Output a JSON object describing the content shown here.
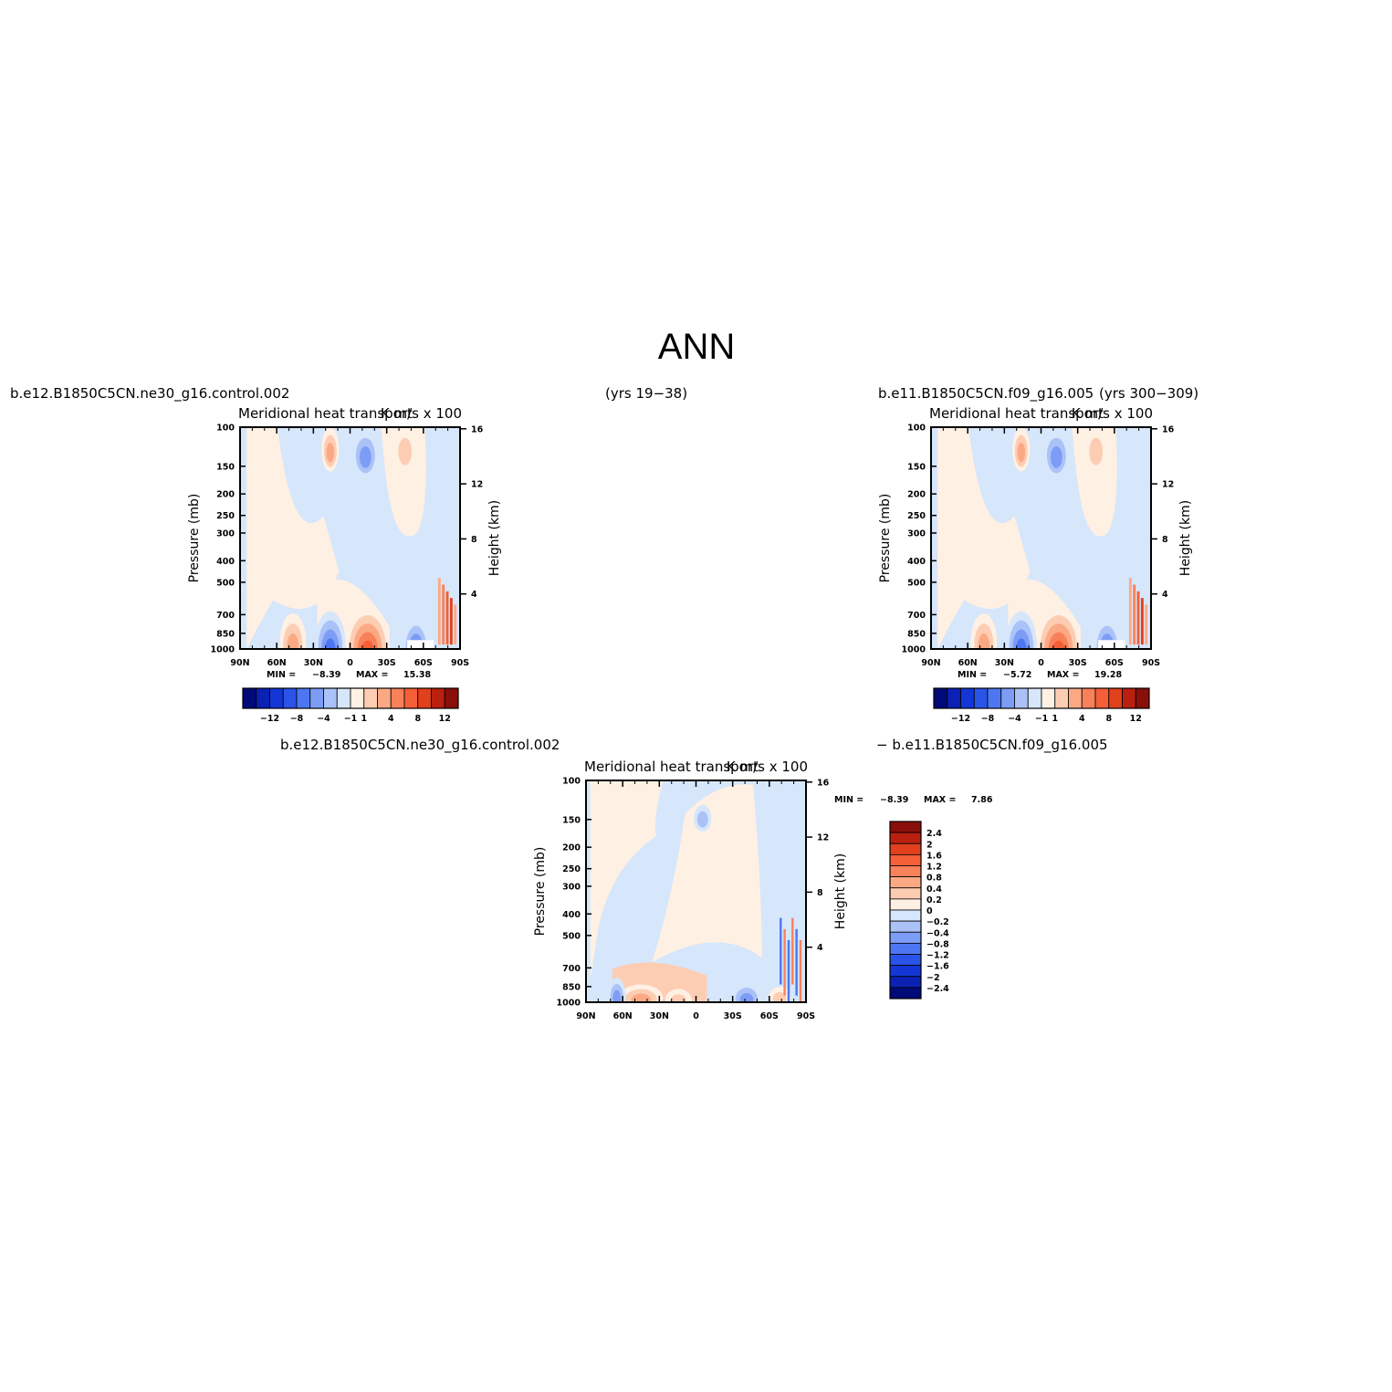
{
  "figure": {
    "main_title": "ANN",
    "season": "ANN"
  },
  "colors": {
    "test_control_palette": [
      "#000a78",
      "#0a21b3",
      "#1436d6",
      "#2a53e8",
      "#4d77f2",
      "#7d9cf5",
      "#aac2f7",
      "#d6e6fb",
      "#fff0e4",
      "#fdcdb3",
      "#fba985",
      "#f9815a",
      "#f45f37",
      "#e0401b",
      "#b9200f",
      "#8a0e0a"
    ],
    "diff_palette": [
      "#000a78",
      "#0a21b3",
      "#1436d6",
      "#2a53e8",
      "#4d77f2",
      "#7d9cf5",
      "#aac2f7",
      "#d6e6fb",
      "#fff0e4",
      "#fdcdb3",
      "#fba985",
      "#f9815a",
      "#f45f37",
      "#e0401b",
      "#b9200f",
      "#8a0e0a"
    ]
  },
  "chart_data": [
    {
      "type": "heatmap",
      "panel": "test",
      "case_name": "b.e12.B1850C5CN.ne30_g16.control.002",
      "case_years": "(yrs 19−38)",
      "title": "Meridional heat transport",
      "units": "K m/s x 100",
      "ylabel": "Pressure (mb)",
      "ylabel_right": "Height (km)",
      "x_ticks": [
        "90N",
        "60N",
        "30N",
        "0",
        "30S",
        "60S",
        "90S"
      ],
      "y_ticks": [
        "100",
        "150",
        "200",
        "250",
        "300",
        "400",
        "500",
        "700",
        "850",
        "1000"
      ],
      "y_ticks_right": [
        "16",
        "12",
        "8",
        "4"
      ],
      "y_scale": "log",
      "xlim": [
        90,
        -90
      ],
      "ylim": [
        1000,
        100
      ],
      "min_label": "MIN =",
      "min_value": "−8.39",
      "max_label": "MAX =",
      "max_value": "15.38",
      "colorbar_orientation": "horizontal",
      "colorbar_labels": [
        "−12",
        "−8",
        "−4",
        "−1",
        "1",
        "4",
        "8",
        "12"
      ]
    },
    {
      "type": "heatmap",
      "panel": "control",
      "case_name": "b.e11.B1850C5CN.f09_g16.005",
      "case_years": "(yrs 300−309)",
      "title": "Meridional heat transport",
      "units": "K m/s x 100",
      "ylabel": "Pressure (mb)",
      "ylabel_right": "Height (km)",
      "x_ticks": [
        "90N",
        "60N",
        "30N",
        "0",
        "30S",
        "60S",
        "90S"
      ],
      "y_ticks": [
        "100",
        "150",
        "200",
        "250",
        "300",
        "400",
        "500",
        "700",
        "850",
        "1000"
      ],
      "y_ticks_right": [
        "16",
        "12",
        "8",
        "4"
      ],
      "y_scale": "log",
      "xlim": [
        90,
        -90
      ],
      "ylim": [
        1000,
        100
      ],
      "min_label": "MIN =",
      "min_value": "−5.72",
      "max_label": "MAX =",
      "max_value": "19.28",
      "colorbar_orientation": "horizontal",
      "colorbar_labels": [
        "−12",
        "−8",
        "−4",
        "−1",
        "1",
        "4",
        "8",
        "12"
      ]
    },
    {
      "type": "heatmap",
      "panel": "difference",
      "case_name": "b.e12.B1850C5CN.ne30_g16.control.002",
      "case_name_right": "−  b.e11.B1850C5CN.f09_g16.005",
      "title": "Meridional heat transport",
      "units": "K m/s x 100",
      "ylabel": "Pressure (mb)",
      "ylabel_right": "Height (km)",
      "x_ticks": [
        "90N",
        "60N",
        "30N",
        "0",
        "30S",
        "60S",
        "90S"
      ],
      "y_ticks": [
        "100",
        "150",
        "200",
        "250",
        "300",
        "400",
        "500",
        "700",
        "850",
        "1000"
      ],
      "y_ticks_right": [
        "16",
        "12",
        "8",
        "4"
      ],
      "y_scale": "log",
      "xlim": [
        90,
        -90
      ],
      "ylim": [
        1000,
        100
      ],
      "min_label": "MIN =",
      "min_value": "−8.39",
      "max_label": "MAX =",
      "max_value": "7.86",
      "colorbar_orientation": "vertical",
      "colorbar_labels": [
        "2.4",
        "2",
        "1.6",
        "1.2",
        "0.8",
        "0.4",
        "0.2",
        "0",
        "−0.2",
        "−0.4",
        "−0.8",
        "−1.2",
        "−1.6",
        "−2",
        "−2.4"
      ]
    }
  ]
}
